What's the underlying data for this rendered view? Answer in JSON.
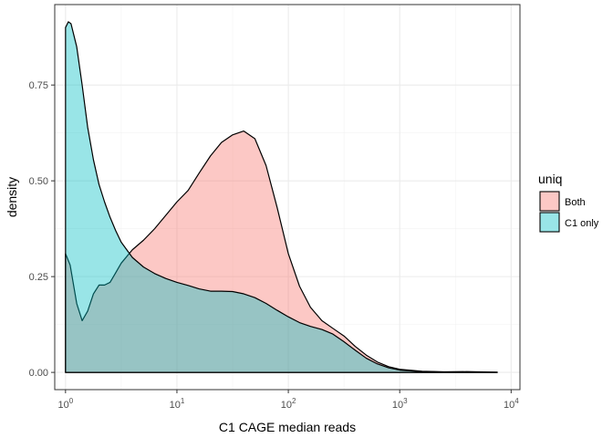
{
  "chart_data": {
    "type": "area",
    "chart_kind": "density",
    "xlabel": "C1 CAGE median reads",
    "ylabel": "density",
    "x_scale": "log10",
    "xlim": [
      0.8,
      12000
    ],
    "ylim": [
      -0.045,
      0.96
    ],
    "x_ticks": [
      {
        "value": 1,
        "base": "10",
        "exp": "0"
      },
      {
        "value": 10,
        "base": "10",
        "exp": "1"
      },
      {
        "value": 100,
        "base": "10",
        "exp": "2"
      },
      {
        "value": 1000,
        "base": "10",
        "exp": "3"
      },
      {
        "value": 10000,
        "base": "10",
        "exp": "4"
      }
    ],
    "y_ticks": [
      {
        "value": 0.0,
        "label": "0.00"
      },
      {
        "value": 0.25,
        "label": "0.25"
      },
      {
        "value": 0.5,
        "label": "0.50"
      },
      {
        "value": 0.75,
        "label": "0.75"
      }
    ],
    "grid": true,
    "legend": {
      "title": "uniq",
      "position": "right"
    },
    "series": [
      {
        "name": "Both",
        "color": "#F8766D",
        "points": [
          [
            1.0,
            0.0
          ],
          [
            1.0,
            0.31
          ],
          [
            1.1,
            0.28
          ],
          [
            1.26,
            0.18
          ],
          [
            1.41,
            0.135
          ],
          [
            1.58,
            0.16
          ],
          [
            1.78,
            0.205
          ],
          [
            2.0,
            0.228
          ],
          [
            2.24,
            0.228
          ],
          [
            2.51,
            0.235
          ],
          [
            2.82,
            0.26
          ],
          [
            3.16,
            0.285
          ],
          [
            3.98,
            0.32
          ],
          [
            5.01,
            0.345
          ],
          [
            6.31,
            0.375
          ],
          [
            7.94,
            0.41
          ],
          [
            10.0,
            0.445
          ],
          [
            12.6,
            0.475
          ],
          [
            15.8,
            0.52
          ],
          [
            20.0,
            0.565
          ],
          [
            25.1,
            0.6
          ],
          [
            31.6,
            0.62
          ],
          [
            39.8,
            0.63
          ],
          [
            50.1,
            0.61
          ],
          [
            63.1,
            0.54
          ],
          [
            79.4,
            0.43
          ],
          [
            100,
            0.31
          ],
          [
            126,
            0.225
          ],
          [
            158,
            0.17
          ],
          [
            200,
            0.135
          ],
          [
            251,
            0.115
          ],
          [
            316,
            0.095
          ],
          [
            398,
            0.068
          ],
          [
            501,
            0.045
          ],
          [
            631,
            0.027
          ],
          [
            794,
            0.015
          ],
          [
            1000,
            0.008
          ],
          [
            1585,
            0.003
          ],
          [
            2512,
            0.0015
          ],
          [
            3981,
            0.002
          ],
          [
            5012,
            0.0015
          ],
          [
            7500,
            0.0006
          ]
        ]
      },
      {
        "name": "C1 only",
        "color": "#00BFC4",
        "points": [
          [
            1.0,
            0.0
          ],
          [
            1.0,
            0.9
          ],
          [
            1.06,
            0.915
          ],
          [
            1.12,
            0.91
          ],
          [
            1.26,
            0.85
          ],
          [
            1.41,
            0.75
          ],
          [
            1.58,
            0.64
          ],
          [
            1.78,
            0.555
          ],
          [
            2.0,
            0.49
          ],
          [
            2.24,
            0.445
          ],
          [
            2.51,
            0.405
          ],
          [
            2.82,
            0.37
          ],
          [
            3.16,
            0.34
          ],
          [
            3.98,
            0.3
          ],
          [
            5.01,
            0.275
          ],
          [
            6.31,
            0.258
          ],
          [
            7.94,
            0.245
          ],
          [
            10.0,
            0.235
          ],
          [
            12.6,
            0.227
          ],
          [
            15.8,
            0.218
          ],
          [
            20.0,
            0.212
          ],
          [
            25.1,
            0.212
          ],
          [
            31.6,
            0.211
          ],
          [
            39.8,
            0.205
          ],
          [
            50.1,
            0.195
          ],
          [
            63.1,
            0.18
          ],
          [
            79.4,
            0.162
          ],
          [
            100,
            0.145
          ],
          [
            126,
            0.13
          ],
          [
            158,
            0.12
          ],
          [
            200,
            0.112
          ],
          [
            251,
            0.1
          ],
          [
            316,
            0.08
          ],
          [
            398,
            0.058
          ],
          [
            501,
            0.037
          ],
          [
            631,
            0.022
          ],
          [
            794,
            0.012
          ],
          [
            1000,
            0.006
          ],
          [
            1585,
            0.002
          ],
          [
            2512,
            0.001
          ],
          [
            5012,
            0.0004
          ],
          [
            7500,
            0.0002
          ]
        ]
      }
    ]
  }
}
